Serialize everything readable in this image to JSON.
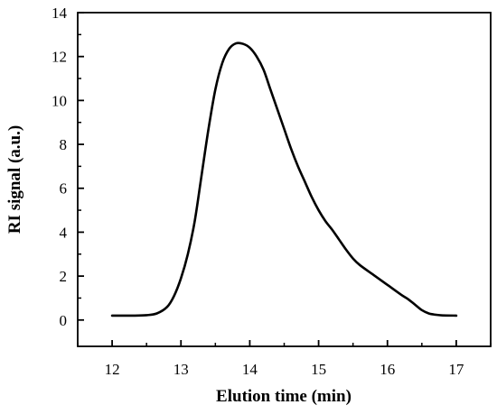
{
  "chart_data": {
    "type": "line",
    "title": "",
    "xlabel": "Elution time (min)",
    "ylabel": "RI signal (a.u.)",
    "xlim": [
      11.5,
      17.5
    ],
    "ylim": [
      -1.2,
      14
    ],
    "x_ticks": [
      12,
      13,
      14,
      15,
      16,
      17
    ],
    "y_ticks": [
      0,
      2,
      4,
      6,
      8,
      10,
      12,
      14
    ],
    "x_tick_labels": [
      "12",
      "13",
      "14",
      "15",
      "16",
      "17"
    ],
    "y_tick_labels": [
      "0",
      "2",
      "4",
      "6",
      "8",
      "10",
      "12",
      "14"
    ],
    "grid": false,
    "legend": "none",
    "series": [
      {
        "color": "#000000",
        "x": [
          12.0,
          12.3,
          12.5,
          12.65,
          12.8,
          12.9,
          13.0,
          13.1,
          13.2,
          13.3,
          13.4,
          13.5,
          13.6,
          13.7,
          13.8,
          13.9,
          14.0,
          14.1,
          14.2,
          14.3,
          14.4,
          14.5,
          14.6,
          14.7,
          14.8,
          14.9,
          15.0,
          15.1,
          15.2,
          15.3,
          15.4,
          15.5,
          15.6,
          15.8,
          16.0,
          16.2,
          16.3,
          16.4,
          16.5,
          16.6,
          16.7,
          16.8,
          17.0
        ],
        "y": [
          0.2,
          0.2,
          0.22,
          0.3,
          0.6,
          1.1,
          1.9,
          3.0,
          4.5,
          6.6,
          8.7,
          10.5,
          11.7,
          12.35,
          12.6,
          12.58,
          12.4,
          12.0,
          11.4,
          10.5,
          9.6,
          8.7,
          7.8,
          7.0,
          6.3,
          5.6,
          5.0,
          4.5,
          4.1,
          3.65,
          3.2,
          2.8,
          2.5,
          2.05,
          1.6,
          1.15,
          0.95,
          0.7,
          0.45,
          0.3,
          0.24,
          0.21,
          0.2
        ]
      }
    ]
  }
}
